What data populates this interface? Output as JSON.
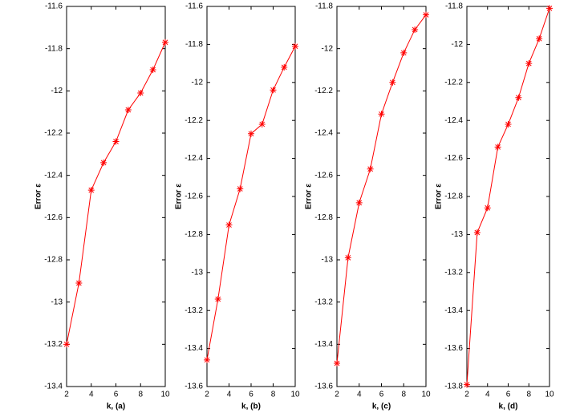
{
  "chart_data": [
    {
      "type": "line",
      "xlabel": "k, (a)",
      "ylabel": "Error ε",
      "color": "#ff0000",
      "x": [
        2,
        3,
        4,
        5,
        6,
        7,
        8,
        9,
        10
      ],
      "values": [
        -13.2,
        -12.91,
        -12.47,
        -12.34,
        -12.24,
        -12.09,
        -12.01,
        -11.9,
        -11.77
      ],
      "xlim": [
        2,
        10
      ],
      "xticks": [
        2,
        4,
        6,
        8,
        10
      ],
      "ylim": [
        -13.4,
        -11.6
      ],
      "yticks": [
        -13.4,
        -13.2,
        -13,
        -12.8,
        -12.6,
        -12.4,
        -12.2,
        -12,
        -11.8,
        -11.6
      ]
    },
    {
      "type": "line",
      "xlabel": "k, (b)",
      "ylabel": "Error ε",
      "color": "#ff0000",
      "x": [
        2,
        3,
        4,
        5,
        6,
        7,
        8,
        9,
        10
      ],
      "values": [
        -13.46,
        -13.14,
        -12.75,
        -12.56,
        -12.27,
        -12.22,
        -12.04,
        -11.92,
        -11.81
      ],
      "xlim": [
        2,
        10
      ],
      "xticks": [
        2,
        4,
        6,
        8,
        10
      ],
      "ylim": [
        -13.6,
        -11.6
      ],
      "yticks": [
        -13.6,
        -13.4,
        -13.2,
        -13,
        -12.8,
        -12.6,
        -12.4,
        -12.2,
        -12,
        -11.8,
        -11.6
      ]
    },
    {
      "type": "line",
      "xlabel": "k, (c)",
      "ylabel": "Error ε",
      "color": "#ff0000",
      "x": [
        2,
        3,
        4,
        5,
        6,
        7,
        8,
        9,
        10
      ],
      "values": [
        -13.49,
        -12.99,
        -12.73,
        -12.57,
        -12.31,
        -12.16,
        -12.02,
        -11.91,
        -11.84
      ],
      "xlim": [
        2,
        10
      ],
      "xticks": [
        2,
        4,
        6,
        8,
        10
      ],
      "ylim": [
        -13.6,
        -11.8
      ],
      "yticks": [
        -13.6,
        -13.4,
        -13.2,
        -13,
        -12.8,
        -12.6,
        -12.4,
        -12.2,
        -12,
        -11.8
      ]
    },
    {
      "type": "line",
      "xlabel": "k, (d)",
      "ylabel": "Error ε",
      "color": "#ff0000",
      "x": [
        2,
        3,
        4,
        5,
        6,
        7,
        8,
        9,
        10
      ],
      "values": [
        -13.79,
        -12.99,
        -12.86,
        -12.54,
        -12.42,
        -12.28,
        -12.1,
        -11.97,
        -11.81
      ],
      "xlim": [
        2,
        10
      ],
      "xticks": [
        2,
        4,
        6,
        8,
        10
      ],
      "ylim": [
        -13.8,
        -11.8
      ],
      "yticks": [
        -13.8,
        -13.6,
        -13.4,
        -13.2,
        -13,
        -12.8,
        -12.6,
        -12.4,
        -12.2,
        -12,
        -11.8
      ]
    }
  ]
}
